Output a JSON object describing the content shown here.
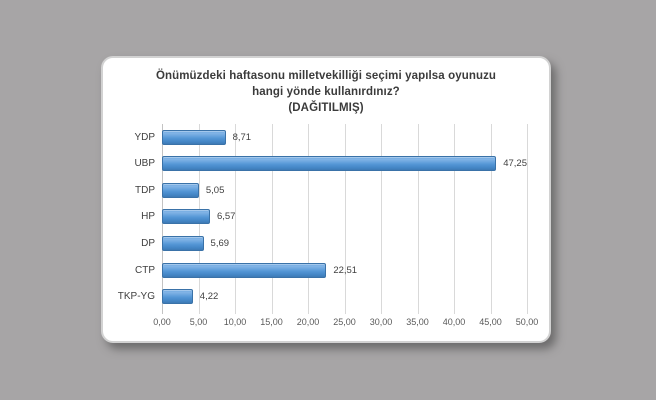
{
  "page": {
    "background_color": "#a7a5a6",
    "panel_color": "#ffffff"
  },
  "chart_data": {
    "type": "bar",
    "orientation": "horizontal",
    "title_lines": [
      "Önümüzdeki haftasonu milletvekilliği seçimi yapılsa oyunuzu",
      "hangi yönde kullanırdınız?",
      "(DAĞITILMIŞ)"
    ],
    "categories": [
      "YDP",
      "UBP",
      "TDP",
      "HP",
      "DP",
      "CTP",
      "TKP-YG"
    ],
    "values": [
      8.71,
      47.25,
      5.05,
      6.57,
      5.69,
      22.51,
      4.22
    ],
    "value_labels": [
      "8,71",
      "47,25",
      "5,05",
      "6,57",
      "5,69",
      "22,51",
      "4,22"
    ],
    "x_ticks": [
      "0,00",
      "5,00",
      "10,00",
      "15,00",
      "20,00",
      "25,00",
      "30,00",
      "35,00",
      "40,00",
      "45,00",
      "50,00"
    ],
    "xlim": [
      0,
      50
    ],
    "grid": true,
    "legend": "none",
    "bar_color": "#4f93d2",
    "gridline_color": "#d9d9d9"
  }
}
